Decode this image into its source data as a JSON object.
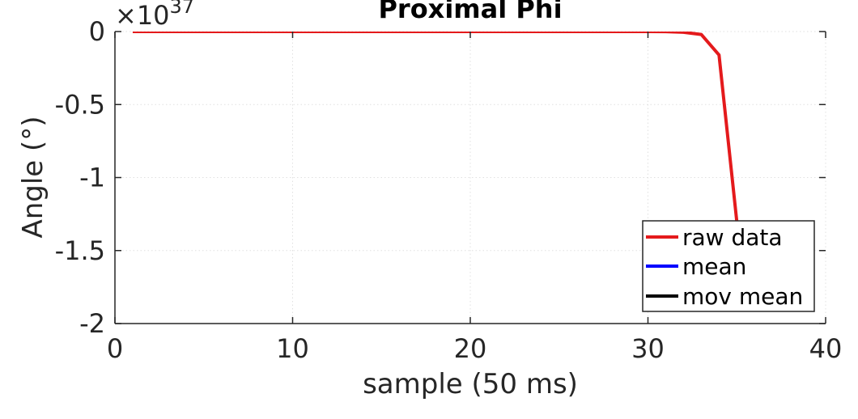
{
  "chart_data": {
    "type": "line",
    "title": "Proximal Phi",
    "xlabel": "sample (50 ms)",
    "ylabel": "Angle (°)",
    "y_exponent_label": "×10",
    "y_exponent": "37",
    "xlim": [
      0,
      40
    ],
    "ylim": [
      -2,
      0
    ],
    "y_scale_factor": 1e+37,
    "grid": true,
    "legend_placement": "bottom-right",
    "x_ticks": [
      0,
      10,
      20,
      30,
      40
    ],
    "x_tick_labels": [
      "0",
      "10",
      "20",
      "30",
      "40"
    ],
    "y_ticks": [
      0,
      -0.5,
      -1,
      -1.5,
      -2
    ],
    "y_tick_labels": [
      "0",
      "-0.5",
      "-1",
      "-1.5",
      "-2"
    ],
    "series": [
      {
        "name": "raw data",
        "color": "#e41a1c",
        "x": [
          1,
          2,
          3,
          4,
          5,
          6,
          7,
          8,
          9,
          10,
          11,
          12,
          13,
          14,
          15,
          16,
          17,
          18,
          19,
          20,
          21,
          22,
          23,
          24,
          25,
          26,
          27,
          28,
          29,
          30,
          31,
          32,
          33,
          34,
          35
        ],
        "y": [
          0,
          0,
          0,
          0,
          0,
          0,
          0,
          0,
          0,
          0,
          0,
          0,
          0,
          0,
          0,
          0,
          0,
          0,
          0,
          0,
          0,
          0,
          0,
          0,
          0,
          0,
          0,
          0,
          0,
          0,
          -0.001,
          -0.005,
          -0.02,
          -0.16,
          -1.3
        ]
      },
      {
        "name": "mean",
        "color": "#0000ff",
        "x": [],
        "y": []
      },
      {
        "name": "mov mean",
        "color": "#000000",
        "x": [],
        "y": []
      }
    ]
  }
}
